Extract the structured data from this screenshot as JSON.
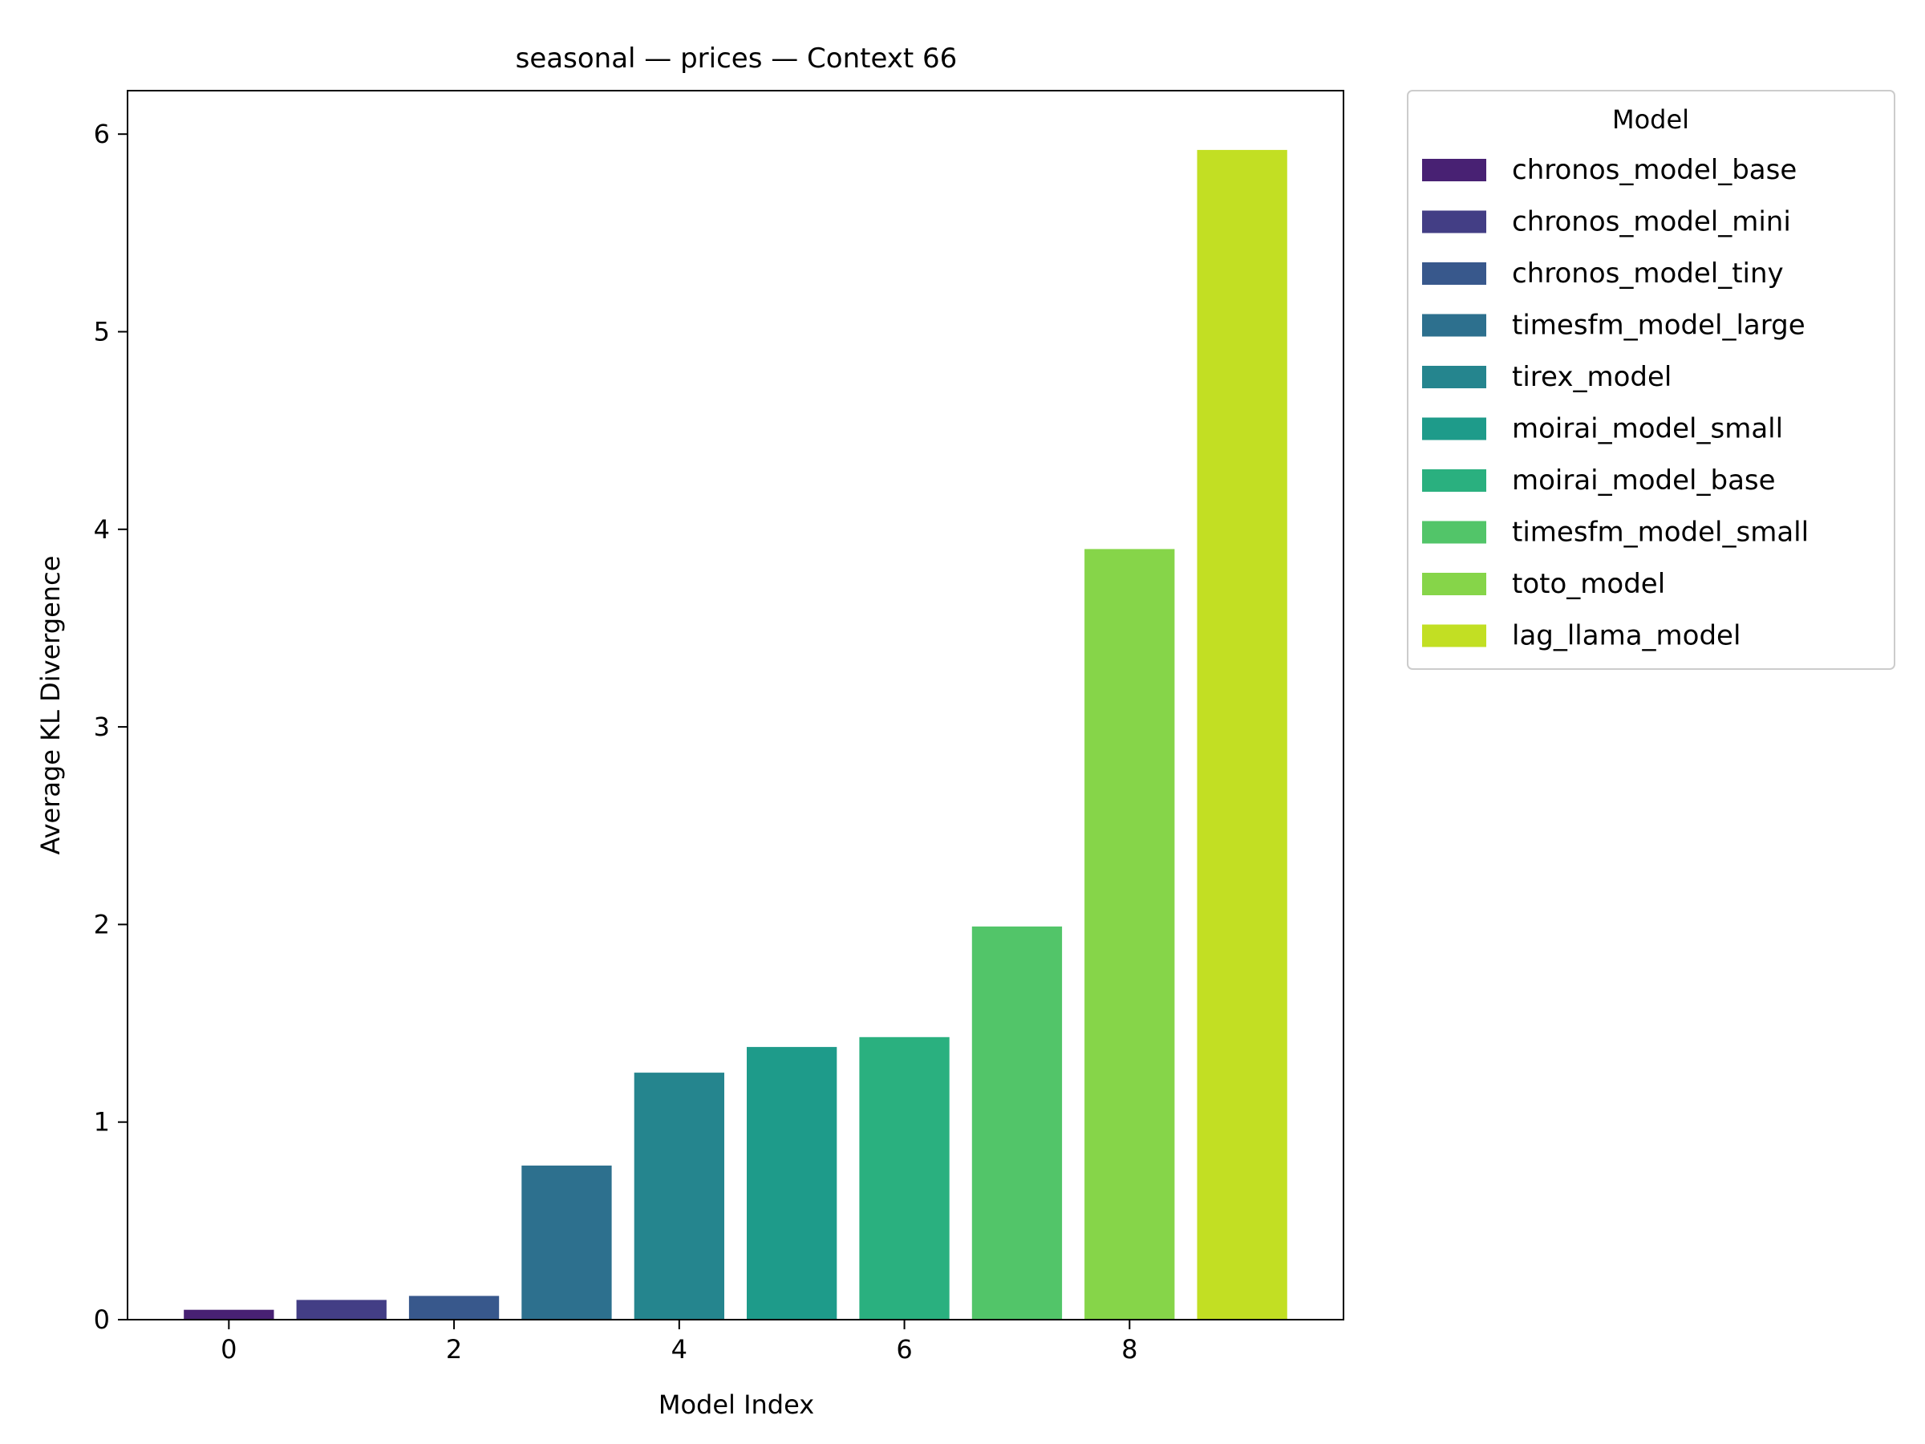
{
  "chart_data": {
    "type": "bar",
    "title": "seasonal — prices — Context 66",
    "xlabel": "Model Index",
    "ylabel": "Average KL Divergence",
    "x": [
      0,
      1,
      2,
      3,
      4,
      5,
      6,
      7,
      8,
      9
    ],
    "values": [
      0.05,
      0.1,
      0.12,
      0.78,
      1.25,
      1.38,
      1.43,
      1.99,
      3.9,
      5.92
    ],
    "xticks": [
      0,
      2,
      4,
      6,
      8
    ],
    "yticks": [
      0,
      1,
      2,
      3,
      4,
      5,
      6
    ],
    "xlim": [
      -0.9,
      9.9
    ],
    "ylim": [
      0,
      6.22
    ],
    "grid": false,
    "legend": {
      "title": "Model",
      "placement": "outside-upper-right",
      "entries": [
        {
          "name": "chronos_model_base",
          "color": "#482173"
        },
        {
          "name": "chronos_model_mini",
          "color": "#433e85"
        },
        {
          "name": "chronos_model_tiny",
          "color": "#38588c"
        },
        {
          "name": "timesfm_model_large",
          "color": "#2d708e"
        },
        {
          "name": "tirex_model",
          "color": "#25858e"
        },
        {
          "name": "moirai_model_small",
          "color": "#1e9b8a"
        },
        {
          "name": "moirai_model_base",
          "color": "#2ab07f"
        },
        {
          "name": "timesfm_model_small",
          "color": "#52c569"
        },
        {
          "name": "toto_model",
          "color": "#86d549"
        },
        {
          "name": "lag_llama_model",
          "color": "#c2df23"
        }
      ]
    }
  }
}
